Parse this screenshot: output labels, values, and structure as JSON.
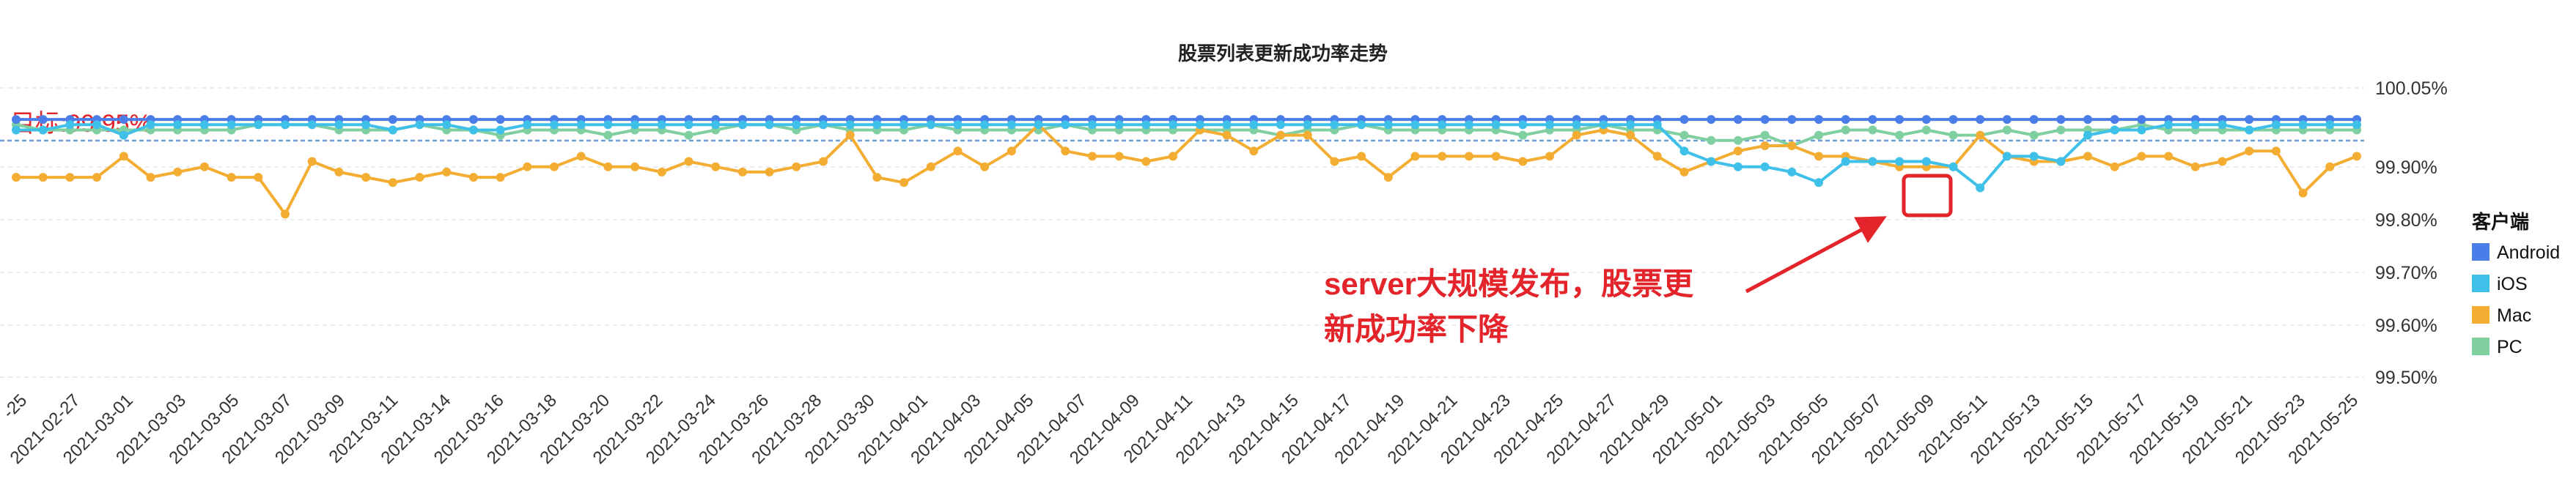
{
  "chart_data": {
    "type": "line",
    "title": "股票列表更新成功率走势",
    "xlabel": "",
    "ylabel": "",
    "ylim": [
      99.5,
      100.05
    ],
    "yticks": [
      "100.05%",
      "99.90%",
      "99.80%",
      "99.70%",
      "99.60%",
      "99.50%"
    ],
    "ytick_values": [
      100.05,
      99.9,
      99.8,
      99.7,
      99.6,
      99.5
    ],
    "x_tick_labels": [
      "-25",
      "2021-02-27",
      "2021-03-01",
      "2021-03-03",
      "2021-03-05",
      "2021-03-07",
      "2021-03-09",
      "2021-03-11",
      "2021-03-14",
      "2021-03-16",
      "2021-03-18",
      "2021-03-20",
      "2021-03-22",
      "2021-03-24",
      "2021-03-26",
      "2021-03-28",
      "2021-03-30",
      "2021-04-01",
      "2021-04-03",
      "2021-04-05",
      "2021-04-07",
      "2021-04-09",
      "2021-04-11",
      "2021-04-13",
      "2021-04-15",
      "2021-04-17",
      "2021-04-19",
      "2021-04-21",
      "2021-04-23",
      "2021-04-25",
      "2021-04-27",
      "2021-04-29",
      "2021-05-01",
      "2021-05-03",
      "2021-05-05",
      "2021-05-07",
      "2021-05-09",
      "2021-05-11",
      "2021-05-13",
      "2021-05-15",
      "2021-05-17",
      "2021-05-19",
      "2021-05-21",
      "2021-05-23",
      "2021-05-25"
    ],
    "legend_title": "客户端",
    "legend_position": "right",
    "grid": "horizontal-dashed",
    "target_line": {
      "label": "目标:99.95%",
      "value": 99.95,
      "color": "#6a9fd8"
    },
    "annotation": {
      "lines": [
        "server大规模发布，股票更",
        "新成功率下降"
      ],
      "color": "#e4242b"
    },
    "series": [
      {
        "name": "Android",
        "color": "#4a7de8",
        "values": [
          99.99,
          99.99,
          99.99,
          99.99,
          99.99,
          99.99,
          99.99,
          99.99,
          99.99,
          99.99,
          99.99,
          99.99,
          99.99,
          99.99,
          99.99,
          99.99,
          99.99,
          99.99,
          99.99,
          99.99,
          99.99,
          99.99,
          99.99,
          99.99,
          99.99,
          99.99,
          99.99,
          99.99,
          99.99,
          99.99,
          99.99,
          99.99,
          99.99,
          99.99,
          99.99,
          99.99,
          99.99,
          99.99,
          99.99,
          99.99,
          99.99,
          99.99,
          99.99,
          99.99,
          99.99,
          99.99,
          99.99,
          99.99,
          99.99,
          99.99,
          99.99,
          99.99,
          99.99,
          99.99,
          99.99,
          99.99,
          99.99,
          99.99,
          99.99,
          99.99,
          99.99,
          99.99,
          99.99,
          99.99,
          99.99,
          99.99,
          99.99,
          99.99,
          99.99,
          99.99,
          99.99,
          99.99,
          99.99,
          99.99,
          99.99,
          99.99,
          99.99,
          99.99,
          99.99,
          99.99,
          99.99,
          99.99,
          99.99,
          99.99,
          99.99,
          99.99,
          99.99,
          99.99
        ]
      },
      {
        "name": "iOS",
        "color": "#3fc0e8",
        "values": [
          99.97,
          99.97,
          99.98,
          99.98,
          99.96,
          99.98,
          99.98,
          99.98,
          99.98,
          99.98,
          99.98,
          99.98,
          99.98,
          99.98,
          99.97,
          99.98,
          99.98,
          99.97,
          99.97,
          99.98,
          99.98,
          99.98,
          99.98,
          99.98,
          99.98,
          99.98,
          99.98,
          99.98,
          99.98,
          99.98,
          99.98,
          99.98,
          99.98,
          99.98,
          99.98,
          99.98,
          99.98,
          99.98,
          99.98,
          99.98,
          99.98,
          99.98,
          99.98,
          99.98,
          99.98,
          99.98,
          99.98,
          99.98,
          99.98,
          99.98,
          99.98,
          99.98,
          99.98,
          99.98,
          99.98,
          99.98,
          99.98,
          99.98,
          99.98,
          99.98,
          99.98,
          99.98,
          99.93,
          99.91,
          99.9,
          99.9,
          99.89,
          99.87,
          99.91,
          99.91,
          99.91,
          99.91,
          99.9,
          99.86,
          99.92,
          99.92,
          99.91,
          99.96,
          99.97,
          99.97,
          99.98,
          99.98,
          99.98,
          99.97,
          99.98,
          99.98,
          99.98,
          99.98
        ]
      },
      {
        "name": "Mac",
        "color": "#f4ad33",
        "values": [
          99.88,
          99.88,
          99.88,
          99.88,
          99.92,
          99.88,
          99.89,
          99.9,
          99.88,
          99.88,
          99.81,
          99.91,
          99.89,
          99.88,
          99.87,
          99.88,
          99.89,
          99.88,
          99.88,
          99.9,
          99.9,
          99.92,
          99.9,
          99.9,
          99.89,
          99.91,
          99.9,
          99.89,
          99.89,
          99.9,
          99.91,
          99.96,
          99.88,
          99.87,
          99.9,
          99.93,
          99.9,
          99.93,
          99.98,
          99.93,
          99.92,
          99.92,
          99.91,
          99.92,
          99.97,
          99.96,
          99.93,
          99.96,
          99.96,
          99.91,
          99.92,
          99.88,
          99.92,
          99.92,
          99.92,
          99.92,
          99.91,
          99.92,
          99.96,
          99.97,
          99.96,
          99.92,
          99.89,
          99.91,
          99.93,
          99.94,
          99.94,
          99.92,
          99.92,
          99.91,
          99.9,
          99.9,
          99.9,
          99.96,
          99.92,
          99.91,
          99.91,
          99.92,
          99.9,
          99.92,
          99.92,
          99.9,
          99.91,
          99.93,
          99.93,
          99.85,
          99.9,
          99.92
        ]
      },
      {
        "name": "PC",
        "color": "#7fcfa0",
        "values": [
          99.98,
          99.97,
          99.97,
          99.97,
          99.97,
          99.97,
          99.97,
          99.97,
          99.97,
          99.98,
          99.98,
          99.98,
          99.97,
          99.97,
          99.97,
          99.98,
          99.97,
          99.97,
          99.96,
          99.97,
          99.97,
          99.97,
          99.96,
          99.97,
          99.97,
          99.96,
          99.97,
          99.98,
          99.98,
          99.97,
          99.98,
          99.97,
          99.97,
          99.97,
          99.98,
          99.97,
          99.97,
          99.97,
          99.97,
          99.98,
          99.97,
          99.97,
          99.97,
          99.97,
          99.97,
          99.97,
          99.97,
          99.96,
          99.97,
          99.97,
          99.98,
          99.97,
          99.97,
          99.97,
          99.97,
          99.97,
          99.96,
          99.97,
          99.97,
          99.98,
          99.97,
          99.97,
          99.96,
          99.95,
          99.95,
          99.96,
          99.94,
          99.96,
          99.97,
          99.97,
          99.96,
          99.97,
          99.96,
          99.96,
          99.97,
          99.96,
          99.97,
          99.97,
          99.97,
          99.98,
          99.97,
          99.97,
          99.97,
          99.97,
          99.97,
          99.97,
          99.97,
          99.97
        ]
      }
    ]
  }
}
